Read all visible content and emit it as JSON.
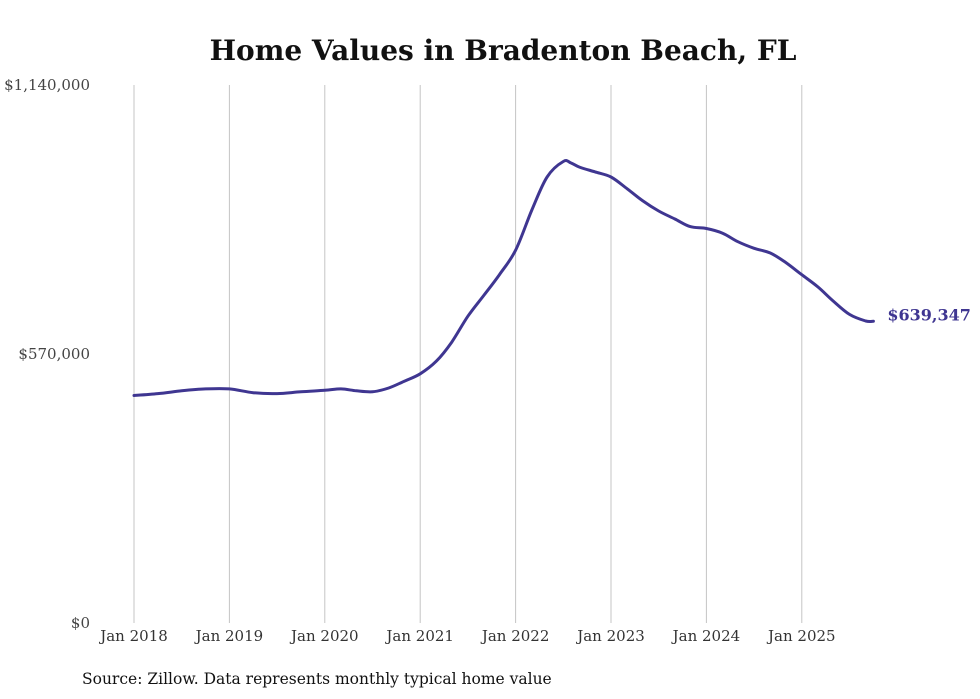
{
  "chart_data": {
    "type": "line",
    "title": "Home Values in Bradenton Beach, FL",
    "source": "Source: Zillow. Data represents monthly typical home value",
    "xlabel": "",
    "ylabel": "",
    "ylim": [
      0,
      1140000
    ],
    "y_ticks": [
      {
        "value": 0,
        "label": "$0"
      },
      {
        "value": 570000,
        "label": "$570,000"
      },
      {
        "value": 1140000,
        "label": "$1,140,000"
      }
    ],
    "x_ticks": [
      {
        "value": 2018.0,
        "label": "Jan 2018"
      },
      {
        "value": 2019.0,
        "label": "Jan 2019"
      },
      {
        "value": 2020.0,
        "label": "Jan 2020"
      },
      {
        "value": 2021.0,
        "label": "Jan 2021"
      },
      {
        "value": 2022.0,
        "label": "Jan 2022"
      },
      {
        "value": 2023.0,
        "label": "Jan 2023"
      },
      {
        "value": 2024.0,
        "label": "Jan 2024"
      },
      {
        "value": 2025.0,
        "label": "Jan 2025"
      }
    ],
    "grid": {
      "vertical": true,
      "horizontal": false
    },
    "series": [
      {
        "name": "Typical home value",
        "color": "#3f3691",
        "end_label": "$639,347",
        "x": [
          2018.0,
          2018.25,
          2018.5,
          2018.75,
          2019.0,
          2019.25,
          2019.5,
          2019.75,
          2020.0,
          2020.17,
          2020.33,
          2020.5,
          2020.67,
          2020.83,
          2021.0,
          2021.17,
          2021.33,
          2021.5,
          2021.67,
          2021.83,
          2022.0,
          2022.17,
          2022.33,
          2022.5,
          2022.58,
          2022.67,
          2022.83,
          2023.0,
          2023.17,
          2023.33,
          2023.5,
          2023.67,
          2023.83,
          2024.0,
          2024.17,
          2024.33,
          2024.5,
          2024.67,
          2024.83,
          2025.0,
          2025.17,
          2025.33,
          2025.5,
          2025.67,
          2025.75
        ],
        "values": [
          482000,
          486000,
          492000,
          496000,
          496000,
          488000,
          486000,
          490000,
          493000,
          496000,
          492000,
          490000,
          498000,
          512000,
          528000,
          555000,
          595000,
          650000,
          695000,
          738000,
          790000,
          875000,
          945000,
          978000,
          975000,
          966000,
          956000,
          945000,
          920000,
          895000,
          873000,
          856000,
          840000,
          836000,
          826000,
          808000,
          794000,
          784000,
          764000,
          738000,
          712000,
          682000,
          654000,
          640000,
          639347
        ]
      }
    ]
  }
}
